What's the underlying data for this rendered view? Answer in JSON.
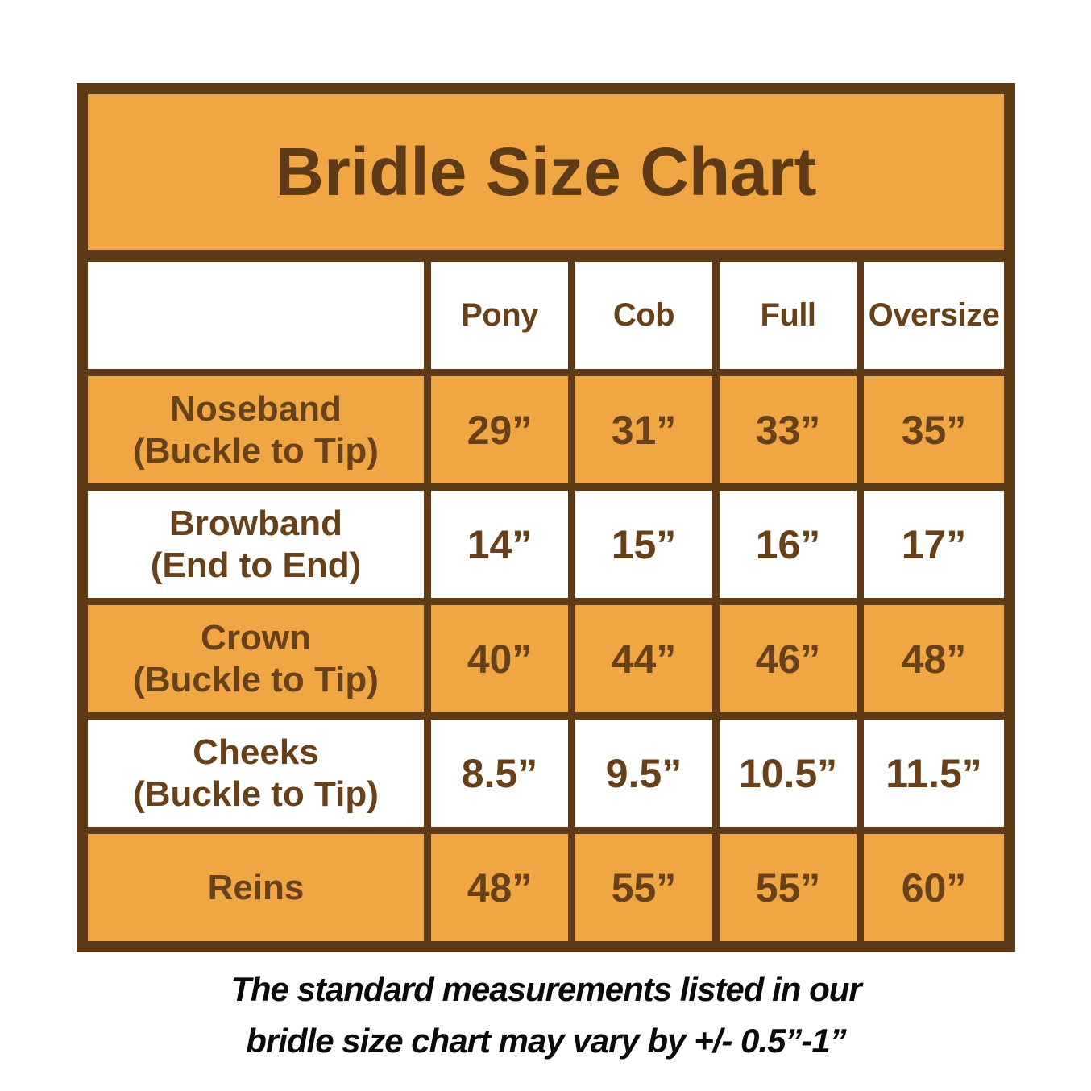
{
  "title": "Bridle Size Chart",
  "colors": {
    "orange": "#F0A643",
    "brown_border": "#5E3A17",
    "brown_text": "#68411B",
    "cell_white": "#FFFFFF",
    "footnote_text": "#0A0A0A"
  },
  "table": {
    "columns": [
      "",
      "Pony",
      "Cob",
      "Full",
      "Oversize"
    ],
    "rows": [
      {
        "label_line1": "Noseband",
        "label_line2": "(Buckle to Tip)",
        "values": [
          "29”",
          "31”",
          "33”",
          "35”"
        ],
        "shaded": true
      },
      {
        "label_line1": "Browband",
        "label_line2": "(End to End)",
        "values": [
          "14”",
          "15”",
          "16”",
          "17”"
        ],
        "shaded": false
      },
      {
        "label_line1": "Crown",
        "label_line2": "(Buckle to Tip)",
        "values": [
          "40”",
          "44”",
          "46”",
          "48”"
        ],
        "shaded": true
      },
      {
        "label_line1": "Cheeks",
        "label_line2": "(Buckle to Tip)",
        "values": [
          "8.5”",
          "9.5”",
          "10.5”",
          "11.5”"
        ],
        "shaded": false
      },
      {
        "label_line1": "Reins",
        "label_line2": "",
        "values": [
          "48”",
          "55”",
          "55”",
          "60”"
        ],
        "shaded": true
      }
    ]
  },
  "footer": {
    "line1": "The standard measurements listed in our",
    "line2": "bridle size chart may vary by +/- 0.5”-1”"
  },
  "chart_data": {
    "type": "table",
    "title": "Bridle Size Chart",
    "columns": [
      "",
      "Pony",
      "Cob",
      "Full",
      "Oversize"
    ],
    "rows": [
      [
        "Noseband (Buckle to Tip)",
        "29”",
        "31”",
        "33”",
        "35”"
      ],
      [
        "Browband (End to End)",
        "14”",
        "15”",
        "16”",
        "17”"
      ],
      [
        "Crown (Buckle to Tip)",
        "40”",
        "44”",
        "46”",
        "48”"
      ],
      [
        "Cheeks (Buckle to Tip)",
        "8.5”",
        "9.5”",
        "10.5”",
        "11.5”"
      ],
      [
        "Reins",
        "48”",
        "55”",
        "55”",
        "60”"
      ]
    ],
    "note": "The standard measurements listed in our bridle size chart may vary by +/- 0.5”-1”"
  }
}
